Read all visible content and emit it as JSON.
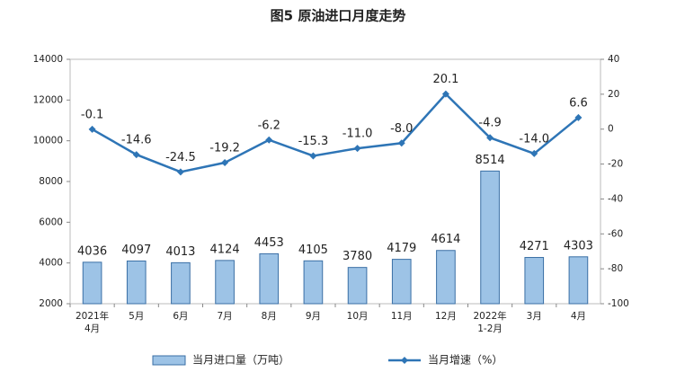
{
  "chart_data": {
    "type": "combo",
    "title": "图5 原油进口月度走势",
    "categories": [
      "2021年\n4月",
      "5月",
      "6月",
      "7月",
      "8月",
      "9月",
      "10月",
      "11月",
      "12月",
      "2022年\n1-2月",
      "3月",
      "4月"
    ],
    "series": [
      {
        "name": "当月进口量（万吨）",
        "type": "bar",
        "color": "#9dc3e6",
        "values": [
          4036,
          4097,
          4013,
          4124,
          4453,
          4105,
          3780,
          4179,
          4614,
          8514,
          4271,
          4303
        ]
      },
      {
        "name": "当月增速（%）",
        "type": "line",
        "axis": "y2",
        "color": "#2e75b6",
        "values": [
          -0.1,
          -14.6,
          -24.5,
          -19.2,
          -6.2,
          -15.3,
          -11.0,
          -8.0,
          20.1,
          -4.9,
          -14.0,
          6.6
        ],
        "value_labels": [
          "-0.1",
          "-14.6",
          "-24.5",
          "-19.2",
          "-6.2",
          "-15.3",
          "-11.0",
          "-8.0",
          "20.1",
          "-4.9",
          "-14.0",
          "6.6"
        ]
      }
    ],
    "ylim": [
      2000,
      14000
    ],
    "yticks": [
      2000,
      4000,
      6000,
      8000,
      10000,
      12000,
      14000
    ],
    "y2lim": [
      -100,
      40
    ],
    "y2ticks": [
      -100,
      -80,
      -60,
      -40,
      -20,
      0,
      20,
      40
    ],
    "grid": false,
    "legend": "bottom"
  }
}
